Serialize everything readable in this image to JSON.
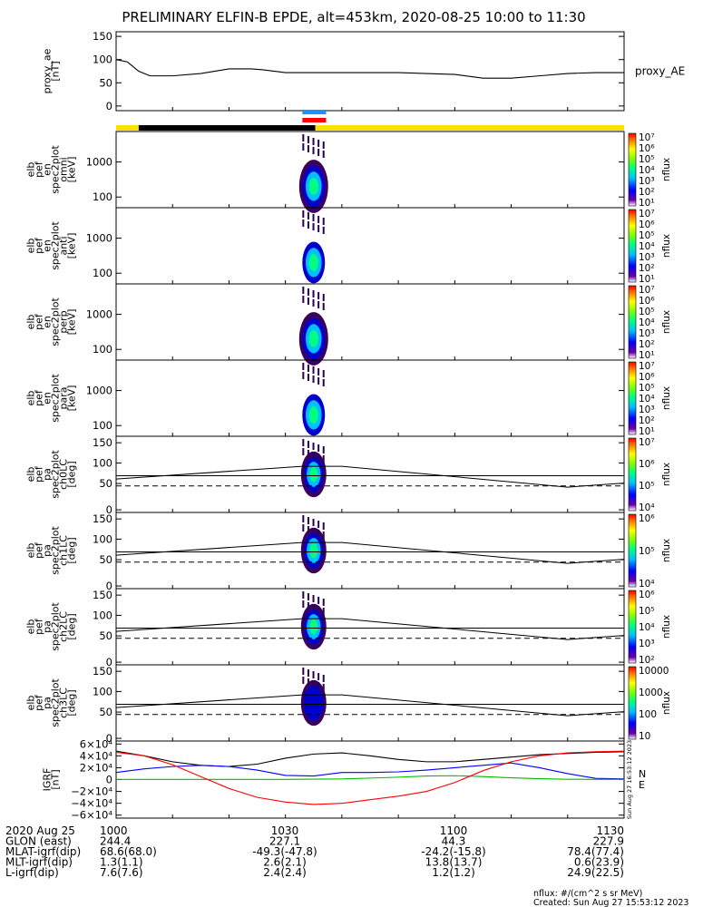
{
  "title": "PRELIMINARY ELFIN-B EPDE, alt=453km, 2020-08-25 10:00 to 11:30",
  "colors": {
    "black_bar": "#000000",
    "yellow_bar": "#ffe000",
    "blue_marker": "#1e90ff",
    "red_marker": "#ff0000",
    "bx": "#0000ff",
    "by": "#00bb00",
    "bz": "#ff0000",
    "bt": "#000000"
  },
  "status_bar": {
    "segments": [
      {
        "start": 0,
        "end": 4,
        "color": "#ffe000"
      },
      {
        "start": 4,
        "end": 35.3,
        "color": "#000000"
      },
      {
        "start": 35.3,
        "end": 90,
        "color": "#ffe000"
      }
    ],
    "markers": [
      {
        "start": 33.0,
        "end": 37.2,
        "color": "#1e90ff"
      },
      {
        "start": 33.0,
        "end": 37.2,
        "color": "#ff0000"
      }
    ]
  },
  "colorbar_unit": "nflux",
  "panels": [
    {
      "id": "proxy_ae",
      "ylabel": [
        "proxy_ae",
        "[nT]"
      ],
      "right_label": "proxy_AE",
      "yticks": [
        "150",
        "100",
        "50",
        "0"
      ],
      "ytick_values": [
        150,
        100,
        50,
        0
      ],
      "ylim": [
        -10,
        160
      ]
    },
    {
      "id": "en_omni",
      "ylabel": [
        "elb",
        "pef",
        "en",
        "spec2plot",
        "omni",
        "[keV]"
      ],
      "yticks": [
        "1000",
        "100"
      ],
      "cbar_ticks": [
        "10⁷",
        "10⁶",
        "10⁵",
        "10⁴",
        "10³",
        "10²",
        "10¹"
      ]
    },
    {
      "id": "en_anti",
      "ylabel": [
        "elb",
        "pef",
        "en",
        "spec2plot",
        "anti",
        "[keV]"
      ],
      "yticks": [
        "1000",
        "100"
      ],
      "cbar_ticks": [
        "10⁷",
        "10⁶",
        "10⁵",
        "10⁴",
        "10³",
        "10²",
        "10¹"
      ]
    },
    {
      "id": "en_perp",
      "ylabel": [
        "elb",
        "pef",
        "en",
        "spec2plot",
        "perp",
        "[keV]"
      ],
      "yticks": [
        "1000",
        "100"
      ],
      "cbar_ticks": [
        "10⁷",
        "10⁶",
        "10⁵",
        "10⁴",
        "10³",
        "10²",
        "10¹"
      ]
    },
    {
      "id": "en_para",
      "ylabel": [
        "elb",
        "pef",
        "en",
        "spec2plot",
        "para",
        "[keV]"
      ],
      "yticks": [
        "1000",
        "100"
      ],
      "cbar_ticks": [
        "10⁷",
        "10⁶",
        "10⁵",
        "10⁴",
        "10³",
        "10²",
        "10¹"
      ]
    },
    {
      "id": "pa_ch0",
      "ylabel": [
        "elb",
        "pef",
        "pa",
        "spec2plot",
        "ch0LC",
        "[deg]"
      ],
      "yticks": [
        "150",
        "100",
        "50",
        "0"
      ],
      "cbar_ticks": [
        "10⁷",
        "10⁶",
        "10⁵",
        "10⁴"
      ]
    },
    {
      "id": "pa_ch1",
      "ylabel": [
        "elb",
        "pef",
        "pa",
        "spec2plot",
        "ch1LC",
        "[deg]"
      ],
      "yticks": [
        "150",
        "100",
        "50",
        "0"
      ],
      "cbar_ticks": [
        "10⁶",
        "10⁵",
        "10⁴"
      ]
    },
    {
      "id": "pa_ch2",
      "ylabel": [
        "elb",
        "pef",
        "pa",
        "spec2plot",
        "ch2LC",
        "[deg]"
      ],
      "yticks": [
        "150",
        "100",
        "50",
        "0"
      ],
      "cbar_ticks": [
        "10⁶",
        "10⁵",
        "10⁴",
        "10³",
        "10²"
      ]
    },
    {
      "id": "pa_ch3",
      "ylabel": [
        "elb",
        "pef",
        "pa",
        "spec2plot",
        "ch3LC",
        "[deg]"
      ],
      "yticks": [
        "150",
        "100",
        "50",
        "0"
      ],
      "cbar_ticks": [
        "10000",
        "1000",
        "100",
        "10"
      ]
    },
    {
      "id": "igrf",
      "ylabel": [
        "IGRF",
        "[nT]"
      ],
      "yticks": [
        "6×10⁴",
        "4×10⁴",
        "2×10⁴",
        "0",
        "−2×10⁴",
        "−4×10⁴",
        "−6×10⁴"
      ],
      "ytick_values": [
        60000,
        40000,
        20000,
        0,
        -20000,
        -40000,
        -60000
      ],
      "ylim": [
        -65000,
        65000
      ],
      "right_labels": [
        "N",
        "E"
      ],
      "side_note": "Sun Aug 27 16:53:12 2023"
    }
  ],
  "footer": {
    "rows": [
      {
        "label": "2020 Aug 25",
        "values": [
          "1000",
          "1030",
          "1100",
          "1130"
        ]
      },
      {
        "label": "GLON (east)",
        "values": [
          "244.4",
          "227.1",
          "44.3",
          "227.9"
        ]
      },
      {
        "label": "MLAT-igrf(dip)",
        "values": [
          "68.6(68.0)",
          "-49.3(-47.8)",
          "-24.2(-15.8)",
          "78.4(77.4)"
        ]
      },
      {
        "label": "MLT-igrf(dip)",
        "values": [
          "1.3(1.1)",
          "2.6(2.1)",
          "13.8(13.7)",
          "0.6(23.9)"
        ]
      },
      {
        "label": "L-igrf(dip)",
        "values": [
          "7.6(7.6)",
          "2.4(2.4)",
          "1.2(1.2)",
          "24.9(22.5)"
        ]
      }
    ],
    "note_units": "nflux: #/(cm^2 s sr MeV)",
    "note_created": "Created: Sun Aug 27 15:53:12 2023"
  },
  "chart_data": [
    {
      "type": "line",
      "title": "PRELIMINARY ELFIN-B EPDE, alt=453km, 2020-08-25 10:00 to 11:30",
      "ylabel": "proxy_ae [nT]",
      "ylim": [
        -10,
        160
      ],
      "xlim": [
        "10:00",
        "11:30"
      ],
      "x_minutes": [
        0,
        2,
        4,
        6,
        8,
        10,
        15,
        20,
        22,
        24,
        26,
        30,
        35,
        40,
        45,
        50,
        55,
        60,
        65,
        67,
        70,
        75,
        80,
        85,
        90
      ],
      "series": [
        {
          "name": "proxy_AE",
          "values": [
            100,
            95,
            75,
            65,
            65,
            65,
            70,
            80,
            80,
            80,
            78,
            72,
            72,
            72,
            72,
            72,
            70,
            68,
            60,
            60,
            60,
            65,
            70,
            72,
            72
          ]
        }
      ]
    },
    {
      "type": "heatmap",
      "label": "elb pef en spec2plot omni [keV]",
      "ylim_keV": [
        50,
        7000
      ],
      "yscale": "log",
      "active_interval": [
        "10:33",
        "10:37"
      ],
      "colorbar_range": [
        "10¹",
        "10⁷"
      ]
    },
    {
      "type": "heatmap",
      "label": "elb pef en spec2plot anti [keV]",
      "yscale": "log",
      "active_interval": [
        "10:34",
        "10:37"
      ]
    },
    {
      "type": "heatmap",
      "label": "elb pef en spec2plot perp [keV]",
      "yscale": "log",
      "active_interval": [
        "10:33",
        "10:37"
      ]
    },
    {
      "type": "heatmap",
      "label": "elb pef en spec2plot para [keV]",
      "yscale": "log",
      "active_interval": [
        "10:34",
        "10:37"
      ]
    },
    {
      "type": "heatmap",
      "label": "elb pef pa spec2plot ch0LC [deg]",
      "ylim": [
        0,
        180
      ],
      "overlays": {
        "loss_cone_solid": [
          {
            "x": 0,
            "y": 82
          },
          {
            "x": 33,
            "y": 113
          },
          {
            "x": 40,
            "y": 113
          },
          {
            "x": 80,
            "y": 62
          },
          {
            "x": 90,
            "y": 72
          }
        ],
        "horizontal_solid": 90,
        "horizontal_dashed": 65
      }
    },
    {
      "type": "heatmap",
      "label": "elb pef pa spec2plot ch1LC [deg]",
      "ylim": [
        0,
        180
      ]
    },
    {
      "type": "heatmap",
      "label": "elb pef pa spec2plot ch2LC [deg]",
      "ylim": [
        0,
        180
      ]
    },
    {
      "type": "heatmap",
      "label": "elb pef pa spec2plot ch3LC [deg]",
      "ylim": [
        0,
        180
      ]
    },
    {
      "type": "line",
      "label": "IGRF [nT]",
      "ylim": [
        -65000,
        65000
      ],
      "x_minutes": [
        0,
        5,
        10,
        15,
        20,
        25,
        30,
        35,
        40,
        45,
        50,
        55,
        60,
        65,
        70,
        75,
        80,
        85,
        90
      ],
      "series": [
        {
          "values": [
            48000,
            40000,
            30000,
            24000,
            22000,
            26000,
            36000,
            43000,
            45000,
            40000,
            34000,
            30000,
            30000,
            34000,
            38000,
            42000,
            44000,
            46000,
            47000
          ]
        },
        {
          "values": [
            12000,
            18000,
            22000,
            24000,
            22000,
            16000,
            7000,
            6000,
            12000,
            12000,
            13000,
            16000,
            20000,
            24000,
            28000,
            20000,
            10000,
            2000,
            1000
          ]
        },
        {
          "values": [
            300,
            300,
            300,
            300,
            300,
            300,
            300,
            600,
            1000,
            2500,
            4000,
            6000,
            6500,
            5000,
            3000,
            1500,
            500,
            300,
            300
          ]
        },
        {
          "values": [
            46000,
            40000,
            25000,
            5000,
            -15000,
            -30000,
            -38000,
            -42000,
            -40000,
            -34000,
            -28000,
            -20000,
            -5000,
            15000,
            30000,
            40000,
            45000,
            47000,
            48000
          ]
        }
      ]
    }
  ]
}
